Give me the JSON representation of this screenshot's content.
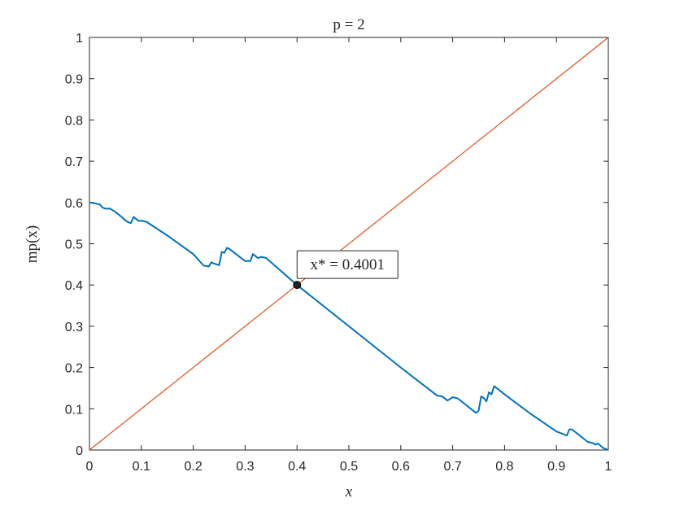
{
  "chart_data": {
    "type": "line",
    "title": "p = 2",
    "x_label": "x",
    "y_label": "mp(x)",
    "xlim": [
      0,
      1
    ],
    "ylim": [
      0,
      1
    ],
    "xticks": [
      0,
      0.1,
      0.2,
      0.3,
      0.4,
      0.5,
      0.6,
      0.7,
      0.8,
      0.9,
      1
    ],
    "yticks": [
      0,
      0.1,
      0.2,
      0.3,
      0.4,
      0.5,
      0.6,
      0.7,
      0.8,
      0.9,
      1
    ],
    "series": [
      {
        "color": "#0072bd",
        "x": [
          0,
          0.01,
          0.02,
          0.025,
          0.03,
          0.04,
          0.05,
          0.06,
          0.07,
          0.075,
          0.08,
          0.085,
          0.09,
          0.095,
          0.1,
          0.11,
          0.15,
          0.2,
          0.22,
          0.23,
          0.235,
          0.24,
          0.25,
          0.255,
          0.26,
          0.265,
          0.27,
          0.3,
          0.31,
          0.315,
          0.32,
          0.325,
          0.33,
          0.34,
          0.4,
          0.5,
          0.6,
          0.67,
          0.68,
          0.69,
          0.7,
          0.71,
          0.74,
          0.745,
          0.75,
          0.755,
          0.76,
          0.765,
          0.77,
          0.775,
          0.78,
          0.8,
          0.85,
          0.9,
          0.91,
          0.92,
          0.925,
          0.93,
          0.94,
          0.96,
          0.97,
          0.975,
          0.98,
          0.99,
          1
        ],
        "values": [
          0.6,
          0.598,
          0.595,
          0.588,
          0.585,
          0.585,
          0.577,
          0.567,
          0.556,
          0.552,
          0.55,
          0.565,
          0.56,
          0.555,
          0.556,
          0.553,
          0.52,
          0.475,
          0.447,
          0.445,
          0.455,
          0.452,
          0.448,
          0.48,
          0.478,
          0.49,
          0.487,
          0.458,
          0.458,
          0.475,
          0.47,
          0.465,
          0.468,
          0.466,
          0.4,
          0.3,
          0.2,
          0.132,
          0.13,
          0.12,
          0.128,
          0.125,
          0.095,
          0.09,
          0.095,
          0.13,
          0.126,
          0.118,
          0.14,
          0.135,
          0.155,
          0.135,
          0.088,
          0.045,
          0.04,
          0.035,
          0.05,
          0.05,
          0.04,
          0.02,
          0.017,
          0.013,
          0.016,
          0.005,
          0
        ]
      },
      {
        "color": "#d95319",
        "x": [
          0,
          1
        ],
        "values": [
          0,
          1
        ]
      }
    ],
    "annotation": {
      "text": "x* = 0.4001",
      "x": 0.4001,
      "y": 0.4001
    }
  }
}
